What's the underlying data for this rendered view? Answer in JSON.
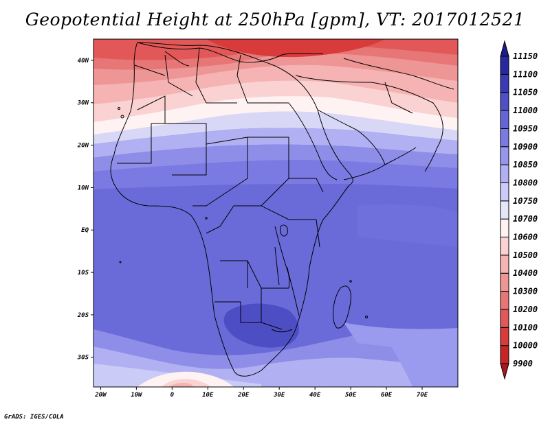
{
  "title": "Geopotential Height at 250hPa [gpm], VT: 2017012521",
  "credit": "GrADS: IGES/COLA",
  "map": {
    "lon_range": [
      -22,
      80
    ],
    "lat_range": [
      -37,
      45
    ],
    "x_ticks": [
      {
        "lon": -20,
        "label": "20W"
      },
      {
        "lon": -10,
        "label": "10W"
      },
      {
        "lon": 0,
        "label": "0"
      },
      {
        "lon": 10,
        "label": "10E"
      },
      {
        "lon": 20,
        "label": "20E"
      },
      {
        "lon": 30,
        "label": "30E"
      },
      {
        "lon": 40,
        "label": "40E"
      },
      {
        "lon": 50,
        "label": "50E"
      },
      {
        "lon": 60,
        "label": "60E"
      },
      {
        "lon": 70,
        "label": "70E"
      }
    ],
    "y_ticks": [
      {
        "lat": 40,
        "label": "40N"
      },
      {
        "lat": 30,
        "label": "30N"
      },
      {
        "lat": 20,
        "label": "20N"
      },
      {
        "lat": 10,
        "label": "10N"
      },
      {
        "lat": 0,
        "label": "EQ"
      },
      {
        "lat": -10,
        "label": "10S"
      },
      {
        "lat": -20,
        "label": "20S"
      },
      {
        "lat": -30,
        "label": "30S"
      }
    ]
  },
  "colorbar": {
    "levels": [
      "9900",
      "10000",
      "10100",
      "10200",
      "10300",
      "10400",
      "10500",
      "10600",
      "10700",
      "10750",
      "10800",
      "10850",
      "10900",
      "10950",
      "11000",
      "11050",
      "11100",
      "11150"
    ],
    "colors": [
      "#a81a1a",
      "#c42525",
      "#d93a3a",
      "#e25858",
      "#e77777",
      "#ee9595",
      "#f5b3b3",
      "#fad2d2",
      "#fff2f2",
      "#e6e6fa",
      "#cbcbf8",
      "#b0b0f2",
      "#9696ec",
      "#7a7ae2",
      "#6565d6",
      "#5050c6",
      "#3a3ab4",
      "#2828a0",
      "#1c1c8c"
    ]
  }
}
